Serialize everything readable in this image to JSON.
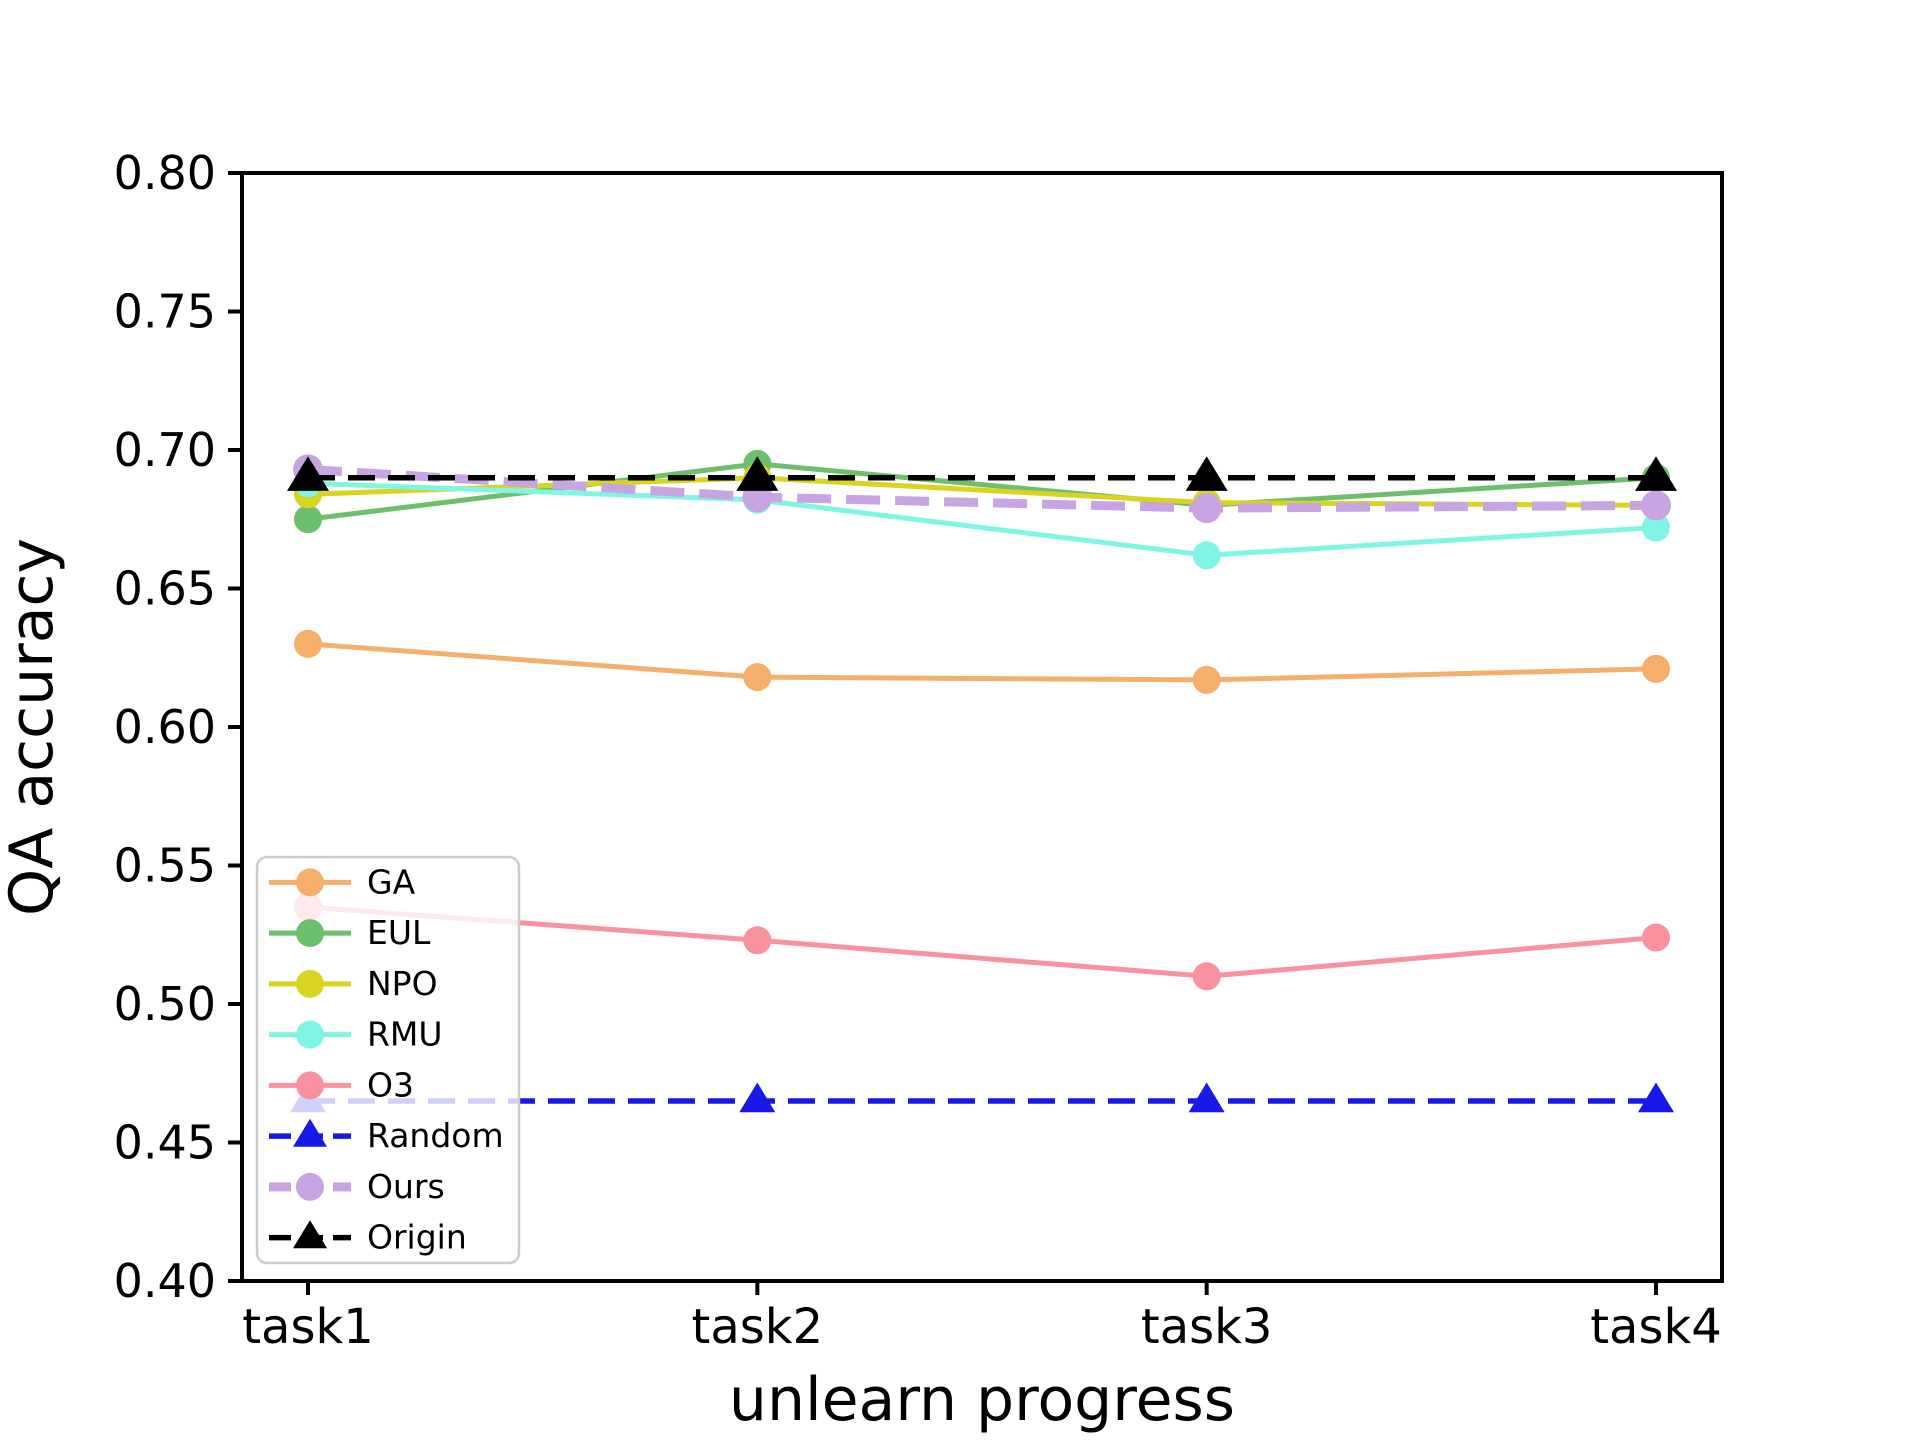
{
  "figure": {
    "background": "#FFFFFF"
  },
  "chart_data": {
    "type": "line",
    "title": "",
    "xlabel": "unlearn progress",
    "ylabel": "QA accuracy",
    "categories": [
      "task1",
      "task2",
      "task3",
      "task4"
    ],
    "ylim": [
      0.4,
      0.8
    ],
    "yticks": [
      0.4,
      0.45,
      0.5,
      0.55,
      0.6,
      0.65,
      0.7,
      0.75,
      0.8
    ],
    "ytick_labels": [
      "0.40",
      "0.45",
      "0.50",
      "0.55",
      "0.60",
      "0.65",
      "0.70",
      "0.75",
      "0.80"
    ],
    "grid": false,
    "legend_position": "lower-left",
    "legend_frame_color": "#CCCCCC",
    "legend_frame_opacity": 0.8,
    "series": [
      {
        "name": "GA",
        "color": "#F6AE6B",
        "line_style": "solid",
        "marker": "circle",
        "values": [
          0.63,
          0.618,
          0.617,
          0.621
        ]
      },
      {
        "name": "EUL",
        "color": "#6CBF6C",
        "line_style": "solid",
        "marker": "circle",
        "values": [
          0.675,
          0.695,
          0.68,
          0.69
        ]
      },
      {
        "name": "NPO",
        "color": "#D9D41F",
        "line_style": "solid",
        "marker": "circle",
        "values": [
          0.684,
          0.69,
          0.681,
          0.68
        ]
      },
      {
        "name": "RMU",
        "color": "#7FF6E4",
        "line_style": "solid",
        "marker": "circle",
        "values": [
          0.688,
          0.682,
          0.662,
          0.672
        ]
      },
      {
        "name": "O3",
        "color": "#F9919E",
        "line_style": "solid",
        "marker": "circle",
        "values": [
          0.535,
          0.523,
          0.51,
          0.524
        ]
      },
      {
        "name": "Random",
        "color": "#1818E8",
        "line_style": "dashed",
        "marker": "triangle",
        "values": [
          0.465,
          0.465,
          0.465,
          0.465
        ]
      },
      {
        "name": "Ours",
        "color": "#C8A4E2",
        "line_style": "dashed-thick",
        "marker": "circle",
        "values": [
          0.693,
          0.683,
          0.679,
          0.68
        ]
      },
      {
        "name": "Origin",
        "color": "#000000",
        "line_style": "dashed",
        "marker": "triangle",
        "values": [
          0.69,
          0.69,
          0.69,
          0.69
        ]
      }
    ]
  }
}
